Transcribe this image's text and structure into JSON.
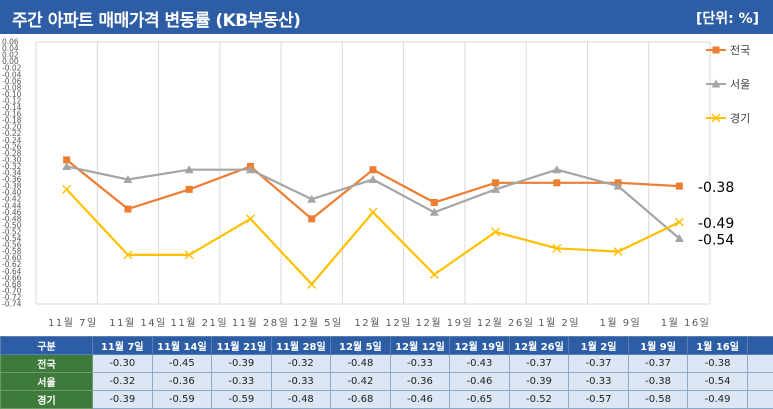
{
  "header": {
    "title": "주간 아파트 매매가격 변동률 (KB부동산)",
    "unit": "[단위: %]"
  },
  "colors": {
    "banner": "#2d5ea5",
    "national": "#ed7d31",
    "seoul": "#a5a5a5",
    "gyeonggi": "#ffc000",
    "row_label": "#3e7b3a",
    "cell": "#dce6f4"
  },
  "chart_data": {
    "type": "line",
    "categories": [
      "11월 7일",
      "11월 14일",
      "11월 21일",
      "11월 28일",
      "12월 5일",
      "12월 12일",
      "12월 19일",
      "12월 26일",
      "1월 2일",
      "1월 9일",
      "1월 16일"
    ],
    "series": [
      {
        "name": "전국",
        "color": "#ed7d31",
        "marker": "square",
        "values": [
          -0.3,
          -0.45,
          -0.39,
          -0.32,
          -0.48,
          -0.33,
          -0.43,
          -0.37,
          -0.37,
          -0.37,
          -0.38
        ]
      },
      {
        "name": "서울",
        "color": "#a5a5a5",
        "marker": "triangle",
        "values": [
          -0.32,
          -0.36,
          -0.33,
          -0.33,
          -0.42,
          -0.36,
          -0.46,
          -0.39,
          -0.33,
          -0.38,
          -0.54
        ]
      },
      {
        "name": "경기",
        "color": "#ffc000",
        "marker": "x",
        "values": [
          -0.39,
          -0.59,
          -0.59,
          -0.48,
          -0.68,
          -0.46,
          -0.65,
          -0.52,
          -0.57,
          -0.58,
          -0.49
        ]
      }
    ],
    "ylim": [
      -0.74,
      0.06
    ],
    "ytick_step": 0.02,
    "grid": true,
    "legend": "right",
    "end_labels": [
      "-0.38",
      "-0.49",
      "-0.54"
    ]
  },
  "table": {
    "corner": "구분",
    "columns": [
      "11월 7일",
      "11월 14일",
      "11월 21일",
      "11월 28일",
      "12월 5일",
      "12월 12일",
      "12월 19일",
      "12월 26일",
      "1월 2일",
      "1월 9일",
      "1월 16일"
    ],
    "rows": [
      {
        "label": "전국",
        "values": [
          "-0.30",
          "-0.45",
          "-0.39",
          "-0.32",
          "-0.48",
          "-0.33",
          "-0.43",
          "-0.37",
          "-0.37",
          "-0.37",
          "-0.38"
        ]
      },
      {
        "label": "서울",
        "values": [
          "-0.32",
          "-0.36",
          "-0.33",
          "-0.33",
          "-0.42",
          "-0.36",
          "-0.46",
          "-0.39",
          "-0.33",
          "-0.38",
          "-0.54"
        ]
      },
      {
        "label": "경기",
        "values": [
          "-0.39",
          "-0.59",
          "-0.59",
          "-0.48",
          "-0.68",
          "-0.46",
          "-0.65",
          "-0.52",
          "-0.57",
          "-0.58",
          "-0.49"
        ]
      }
    ]
  }
}
